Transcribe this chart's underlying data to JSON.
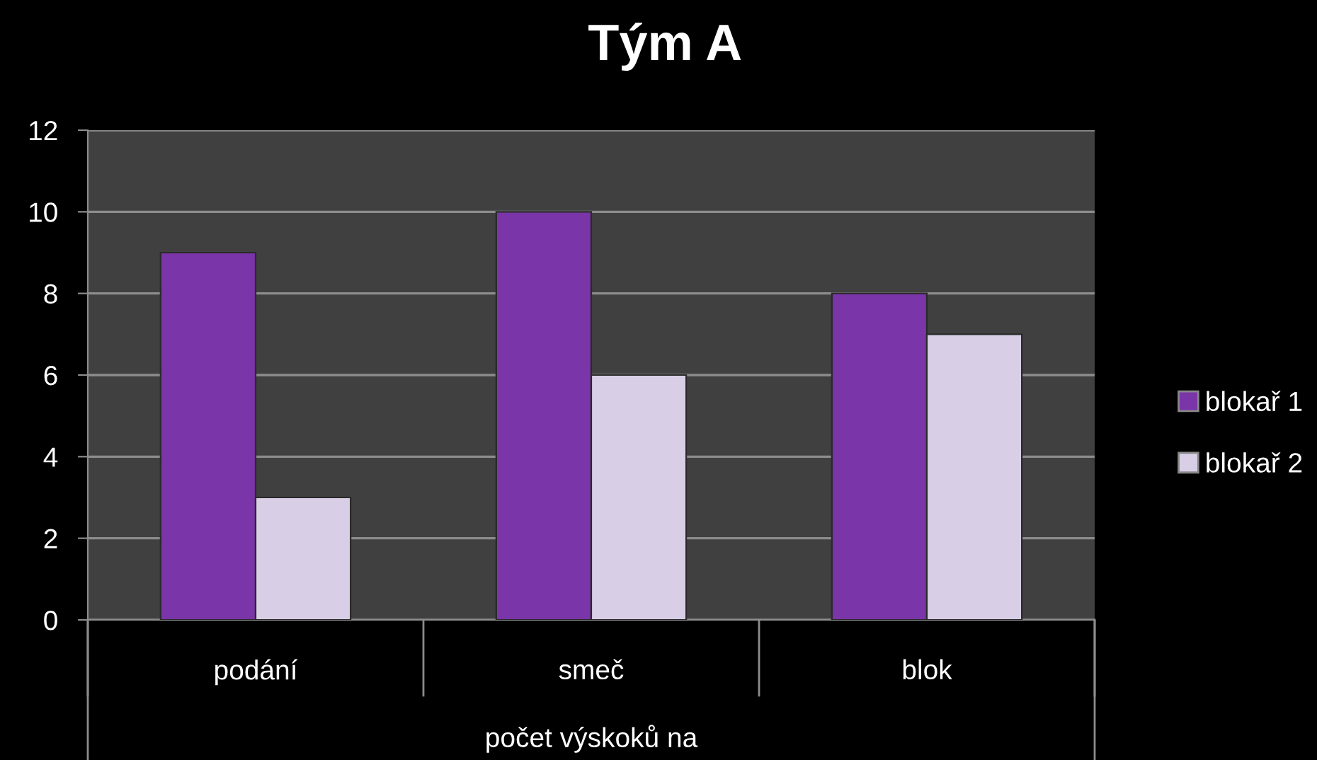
{
  "chart_data": {
    "type": "bar",
    "title": "Tým A",
    "xlabel": "počet výskoků na",
    "categories": [
      "podání",
      "smeč",
      "blok"
    ],
    "series": [
      {
        "name": "blokař 1",
        "color": "#7a35a8",
        "values": [
          9,
          10,
          8
        ]
      },
      {
        "name": "blokař 2",
        "color": "#d8cfe6",
        "values": [
          3,
          6,
          7
        ]
      }
    ],
    "ylim": [
      0,
      12
    ],
    "yticks": [
      0,
      2,
      4,
      6,
      8,
      10,
      12
    ],
    "grid": "y",
    "legend": "right"
  }
}
